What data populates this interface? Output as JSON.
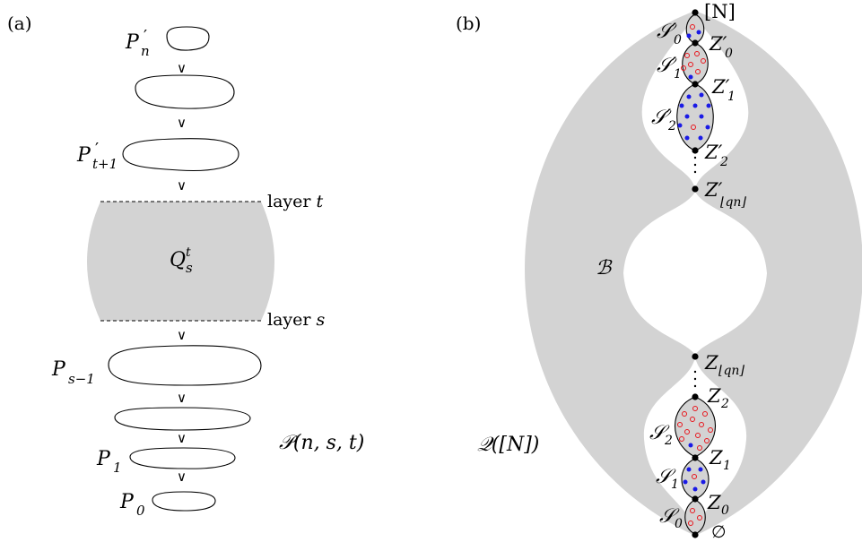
{
  "panel_a": {
    "tag": "(a)",
    "partitions": {
      "pn_base": "P",
      "pn_sub": "n",
      "prime": "′",
      "pt_base": "P",
      "pt_sub": "t+1",
      "ps_base": "P",
      "ps_sub": "s−1",
      "p1_base": "P",
      "p1_sub": "1",
      "p0_base": "P",
      "p0_sub": "0"
    },
    "q_base": "Q",
    "q_sub": "s",
    "q_sup": "t",
    "layer_t_text": "layer ",
    "layer_t_var": "t",
    "layer_s_text": "layer ",
    "layer_s_var": "s",
    "order_symbol": "∨",
    "poset_name": "𝒫(n, s, t)"
  },
  "panel_b": {
    "tag": "(b)",
    "top_set": "[N]",
    "bottom_set": "∅",
    "b_label": "ℬ",
    "q_label": "𝒬([N])",
    "s_prime": [
      "𝒮′",
      "𝒮′",
      "𝒮′"
    ],
    "s_prime_sub": [
      "0",
      "1",
      "2"
    ],
    "z_prime_base": "Z′",
    "z_prime_sub": [
      "0",
      "1",
      "2",
      "⌊qn⌋"
    ],
    "s_base": "𝒮",
    "s_sub": [
      "0",
      "1",
      "2"
    ],
    "z_base": "Z",
    "z_sub": [
      "0",
      "1",
      "2",
      "⌊qn⌋"
    ]
  },
  "colors": {
    "gray_region": "#d3d3d3",
    "red_dot": "#e8141b",
    "blue_dot": "#1a1ae6"
  }
}
